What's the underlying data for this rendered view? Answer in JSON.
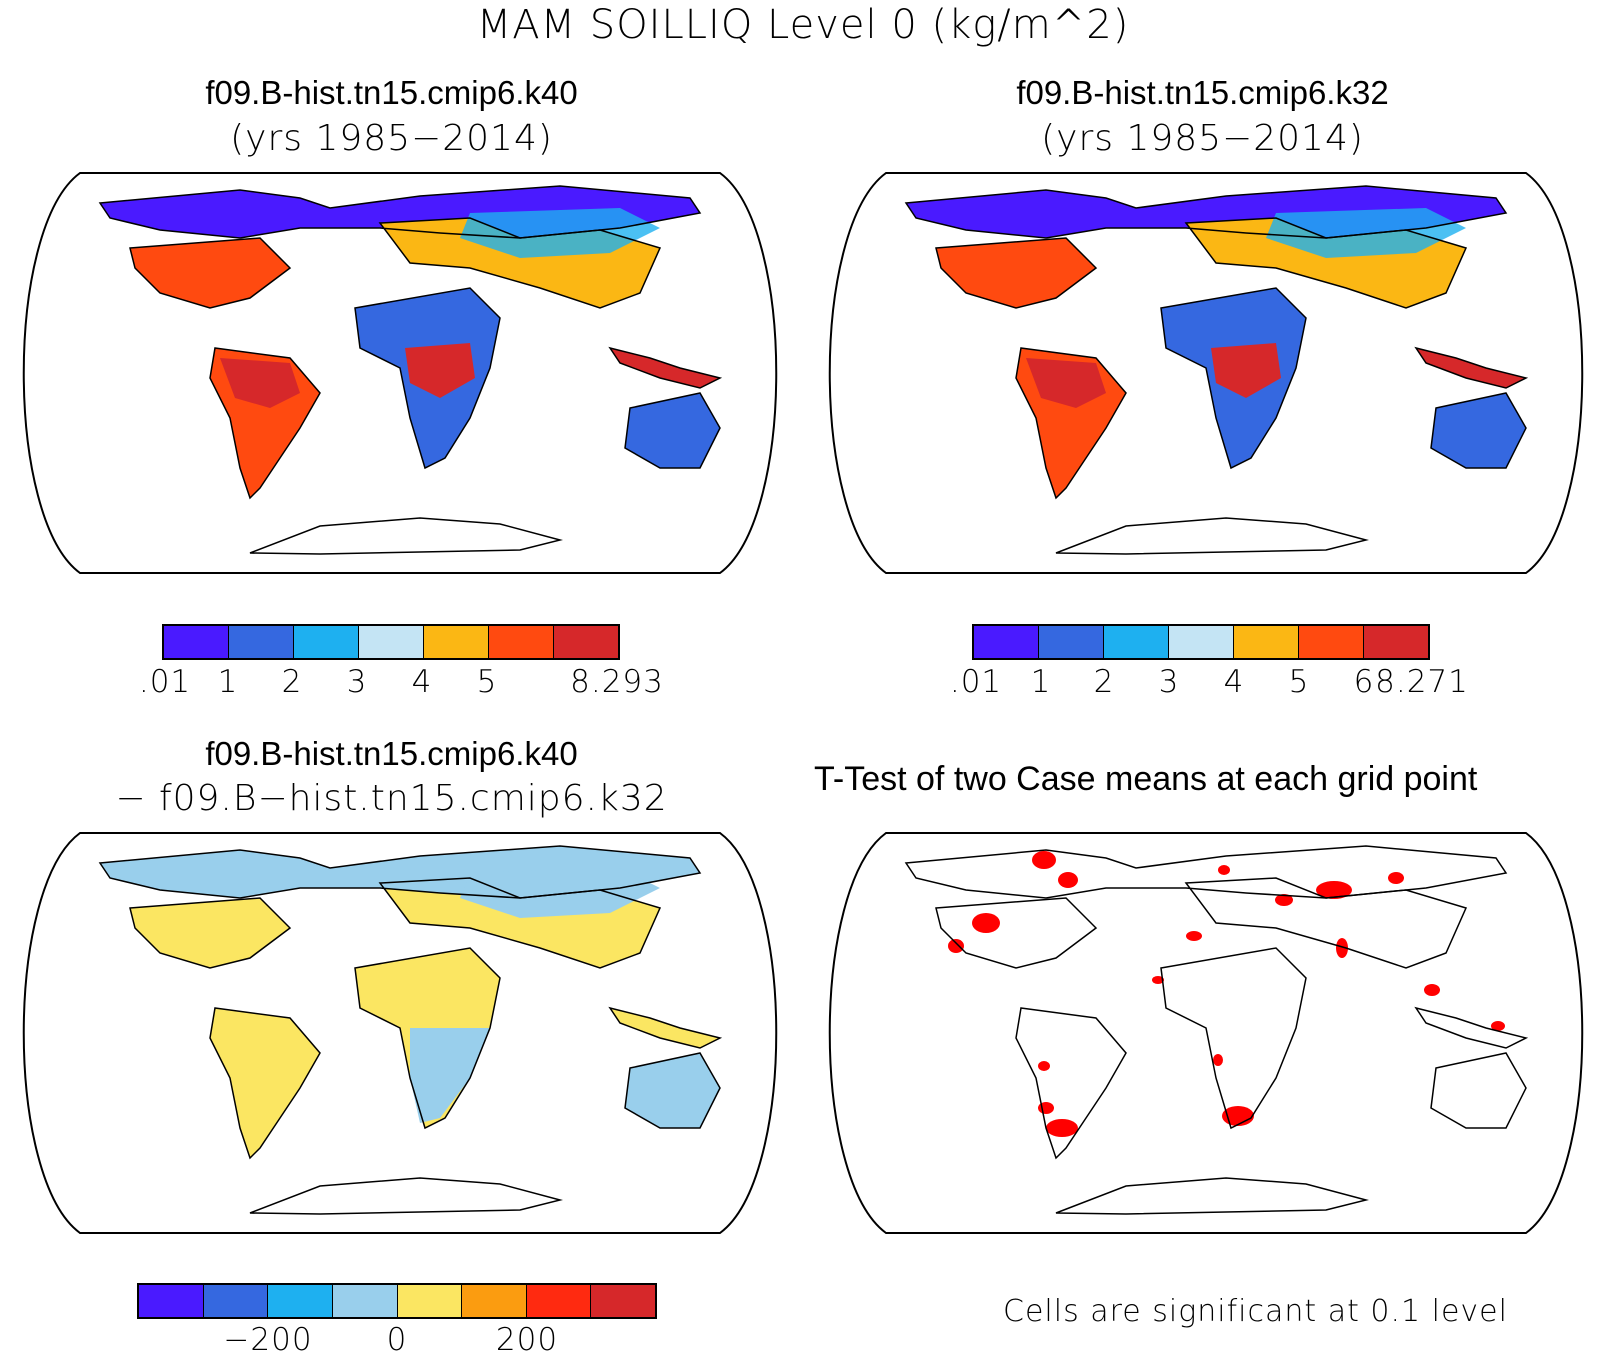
{
  "figure": {
    "title": "MAM SOILLIQ Level 0 (kg/m^2)"
  },
  "panels": [
    {
      "id": "case1",
      "title": "f09.B-hist.tn15.cmip6.k40",
      "subtitle": "(yrs 1985−2014)",
      "colorbar": {
        "colors": [
          "#4a1aff",
          "#3568e0",
          "#1eb0f0",
          "#c4e4f4",
          "#fbb714",
          "#ff4a10",
          "#d6282a"
        ],
        "tick_labels": [
          ".01",
          "1",
          "2",
          "3",
          "4",
          "5",
          "8.293"
        ]
      }
    },
    {
      "id": "case2",
      "title": "f09.B-hist.tn15.cmip6.k32",
      "subtitle": "(yrs 1985−2014)",
      "colorbar": {
        "colors": [
          "#4a1aff",
          "#3568e0",
          "#1eb0f0",
          "#c4e4f4",
          "#fbb714",
          "#ff4a10",
          "#d6282a"
        ],
        "tick_labels": [
          ".01",
          "1",
          "2",
          "3",
          "4",
          "5",
          "6",
          "8.271"
        ]
      }
    },
    {
      "id": "diff",
      "title": "f09.B-hist.tn15.cmip6.k40",
      "subtitle": "− f09.B−hist.tn15.cmip6.k32",
      "colorbar": {
        "colors": [
          "#4a1aff",
          "#3568e0",
          "#1eb0f0",
          "#99cfec",
          "#fbe662",
          "#fb9c10",
          "#ff2a10",
          "#d6282a"
        ],
        "tick_labels": [
          "−200",
          "0",
          "200"
        ]
      }
    },
    {
      "id": "ttest",
      "title": "T-Test of two Case means at each grid point",
      "note": "Cells are significant at 0.1 level",
      "significant_color": "#ff0000"
    }
  ]
}
